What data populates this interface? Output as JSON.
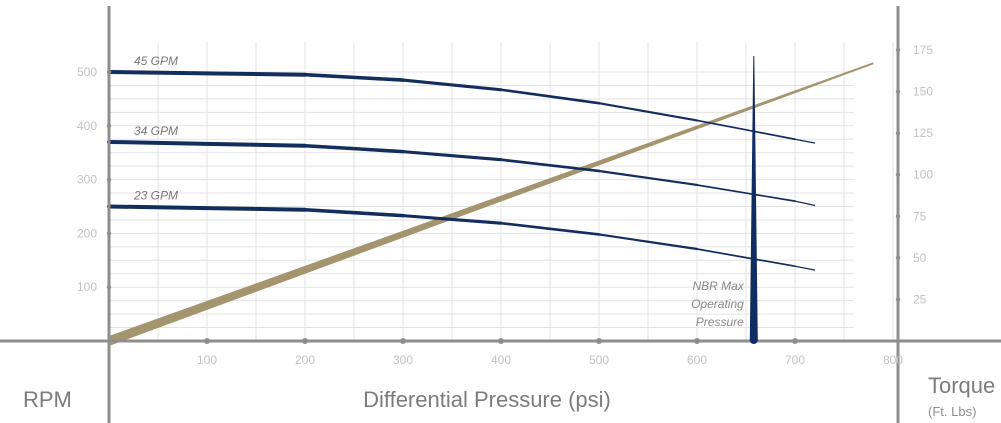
{
  "labels": {
    "left_axis": "RPM",
    "x_axis": "Differential Pressure (psi)",
    "right_axis": "Torque",
    "right_axis_unit": "(Ft. Lbs)"
  },
  "colors": {
    "rpm_series": "#132d5e",
    "torque_series": "#9f8f67",
    "marker": "#102c63",
    "axis": "#8e8e8e",
    "grid": "#e3e3e3",
    "tick_text": "#c2c2c2"
  },
  "chart_data": {
    "type": "line",
    "x_axis": {
      "label": "Differential Pressure (psi)",
      "range": [
        0,
        800
      ],
      "ticks": [
        "100",
        "200",
        "300",
        "400",
        "500",
        "600",
        "700",
        "800"
      ]
    },
    "y_axis_left": {
      "label": "RPM",
      "range": [
        0,
        500
      ],
      "ticks": [
        "100",
        "200",
        "300",
        "400",
        "500"
      ]
    },
    "y_axis_right": {
      "label": "Torque",
      "unit_label": "(Ft. Lbs)",
      "range": [
        0,
        175
      ],
      "ticks": [
        "25",
        "50",
        "75",
        "100",
        "125",
        "150",
        "175"
      ]
    },
    "series": [
      {
        "name": "45 GPM",
        "axis": "left",
        "points": [
          [
            0,
            500
          ],
          [
            200,
            495
          ],
          [
            300,
            485
          ],
          [
            400,
            467
          ],
          [
            500,
            442
          ],
          [
            600,
            410
          ],
          [
            700,
            375
          ],
          [
            720,
            368
          ]
        ]
      },
      {
        "name": "34 GPM",
        "axis": "left",
        "points": [
          [
            0,
            370
          ],
          [
            200,
            363
          ],
          [
            300,
            352
          ],
          [
            400,
            337
          ],
          [
            500,
            316
          ],
          [
            600,
            290
          ],
          [
            700,
            260
          ],
          [
            720,
            252
          ]
        ]
      },
      {
        "name": "23 GPM",
        "axis": "left",
        "points": [
          [
            0,
            250
          ],
          [
            200,
            244
          ],
          [
            300,
            233
          ],
          [
            400,
            219
          ],
          [
            500,
            198
          ],
          [
            600,
            171
          ],
          [
            700,
            139
          ],
          [
            720,
            132
          ]
        ]
      },
      {
        "name": "",
        "axis": "right",
        "points": [
          [
            0,
            0
          ],
          [
            780,
            167
          ]
        ]
      }
    ],
    "annotations": [
      {
        "lines": [
          "NBR Max",
          "Operating",
          "Pressure"
        ],
        "x": 660
      }
    ],
    "grid": true
  }
}
